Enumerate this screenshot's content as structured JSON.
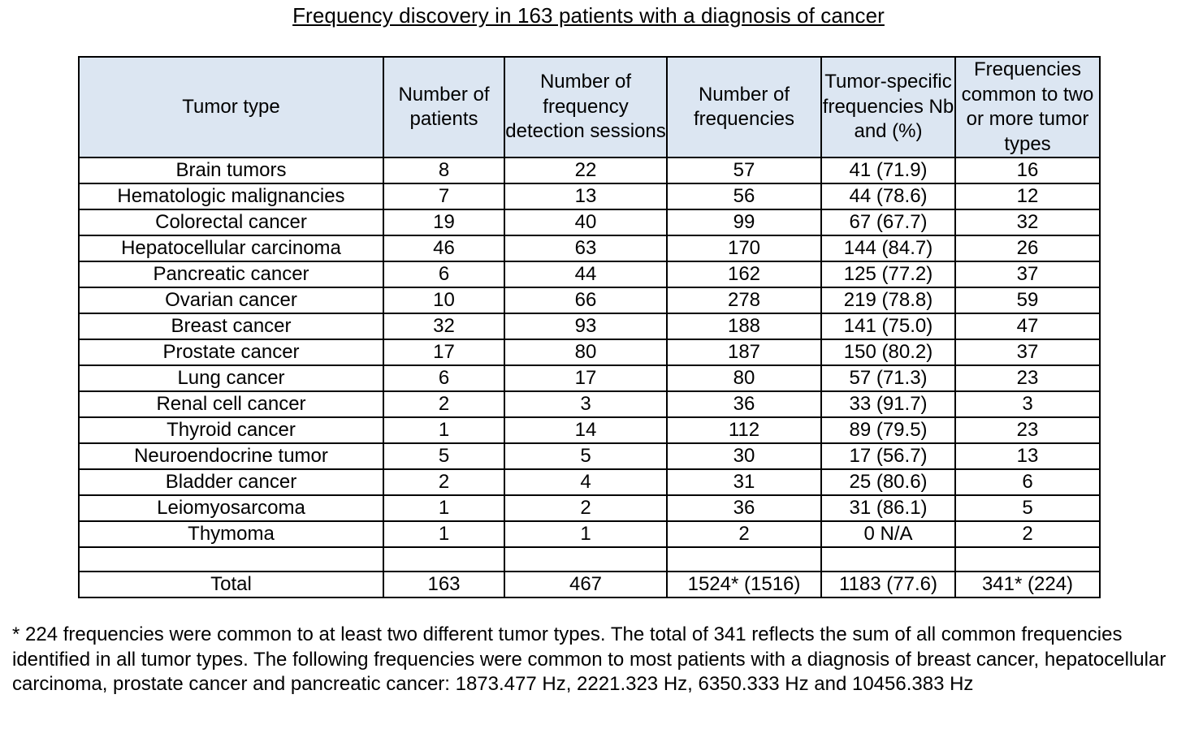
{
  "title": "Frequency discovery in 163 patients with a diagnosis of cancer",
  "headers": [
    "Tumor type",
    "Number of patients",
    "Number of frequency detection sessions",
    "Number of frequencies",
    "Tumor-specific frequencies Nb and (%)",
    "Frequencies common to two or more tumor types"
  ],
  "rows": [
    [
      "Brain tumors",
      "8",
      "22",
      "57",
      "41 (71.9)",
      "16"
    ],
    [
      "Hematologic malignancies",
      "7",
      "13",
      "56",
      "44 (78.6)",
      "12"
    ],
    [
      "Colorectal cancer",
      "19",
      "40",
      "99",
      "67 (67.7)",
      "32"
    ],
    [
      "Hepatocellular carcinoma",
      "46",
      "63",
      "170",
      "144 (84.7)",
      "26"
    ],
    [
      "Pancreatic cancer",
      "6",
      "44",
      "162",
      "125 (77.2)",
      "37"
    ],
    [
      "Ovarian cancer",
      "10",
      "66",
      "278",
      "219 (78.8)",
      "59"
    ],
    [
      "Breast cancer",
      "32",
      "93",
      "188",
      "141 (75.0)",
      "47"
    ],
    [
      "Prostate cancer",
      "17",
      "80",
      "187",
      "150 (80.2)",
      "37"
    ],
    [
      "Lung cancer",
      "6",
      "17",
      "80",
      "57 (71.3)",
      "23"
    ],
    [
      "Renal cell cancer",
      "2",
      "3",
      "36",
      "33 (91.7)",
      "3"
    ],
    [
      "Thyroid cancer",
      "1",
      "14",
      "112",
      "89 (79.5)",
      "23"
    ],
    [
      "Neuroendocrine tumor",
      "5",
      "5",
      "30",
      "17 (56.7)",
      "13"
    ],
    [
      "Bladder cancer",
      "2",
      "4",
      "31",
      "25 (80.6)",
      "6"
    ],
    [
      "Leiomyosarcoma",
      "1",
      "2",
      "36",
      "31 (86.1)",
      "5"
    ],
    [
      "Thymoma",
      "1",
      "1",
      "2",
      "0 N/A",
      "2"
    ]
  ],
  "total": [
    "Total",
    "163",
    "467",
    "1524* (1516)",
    "1183 (77.6)",
    "341* (224)"
  ],
  "colors": {
    "header_bg": "#dce6f2",
    "border": "#000000"
  },
  "footnote": "* 224 frequencies were common to at least two different tumor types. The total of 341 reflects the sum of all common frequencies identified in all tumor types. The following frequencies were common to most patients with a diagnosis of breast cancer, hepatocellular carcinoma, prostate cancer and pancreatic cancer: 1873.477 Hz, 2221.323 Hz, 6350.333 Hz and 10456.383 Hz"
}
